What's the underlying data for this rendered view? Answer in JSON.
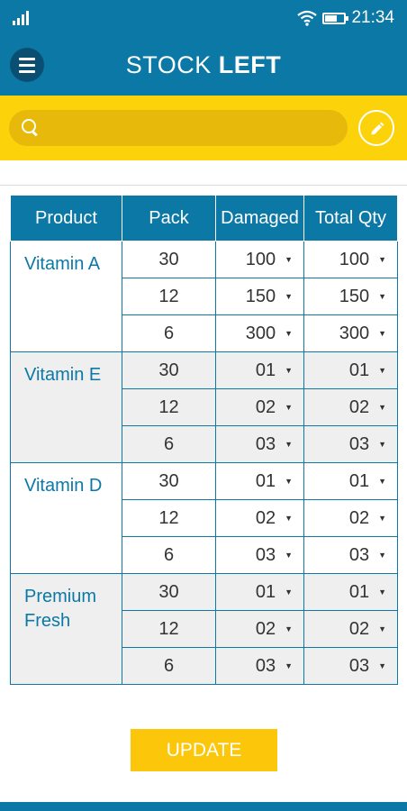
{
  "status": {
    "time": "21:34",
    "icons": [
      "signal-icon",
      "wifi-icon",
      "battery-icon"
    ]
  },
  "header": {
    "title_part1": "STOCK ",
    "title_part2": "LEFT",
    "menu_icon": "menu-icon"
  },
  "search": {
    "placeholder": "",
    "value": "",
    "icon": "search-icon",
    "edit_icon": "edit-icon"
  },
  "table": {
    "headers": [
      "Product",
      "Pack",
      "Damaged",
      "Total Qty"
    ],
    "groups": [
      {
        "product": "Vitamin A",
        "shaded": false,
        "rows": [
          {
            "pack": "30",
            "damaged": "100",
            "total": "100"
          },
          {
            "pack": "12",
            "damaged": "150",
            "total": "150"
          },
          {
            "pack": "6",
            "damaged": "300",
            "total": "300"
          }
        ]
      },
      {
        "product": "Vitamin E",
        "shaded": true,
        "rows": [
          {
            "pack": "30",
            "damaged": "01",
            "total": "01"
          },
          {
            "pack": "12",
            "damaged": "02",
            "total": "02"
          },
          {
            "pack": "6",
            "damaged": "03",
            "total": "03"
          }
        ]
      },
      {
        "product": "Vitamin D",
        "shaded": false,
        "rows": [
          {
            "pack": "30",
            "damaged": "01",
            "total": "01"
          },
          {
            "pack": "12",
            "damaged": "02",
            "total": "02"
          },
          {
            "pack": "6",
            "damaged": "03",
            "total": "03"
          }
        ]
      },
      {
        "product": "Premium Fresh",
        "shaded": true,
        "rows": [
          {
            "pack": "30",
            "damaged": "01",
            "total": "01"
          },
          {
            "pack": "12",
            "damaged": "02",
            "total": "02"
          },
          {
            "pack": "6",
            "damaged": "03",
            "total": "03"
          }
        ]
      }
    ]
  },
  "actions": {
    "update_label": "UPDATE"
  },
  "colors": {
    "primary": "#0b78a6",
    "accent": "#fcd20a",
    "search_field": "#e7b90b",
    "button": "#fcc60a"
  }
}
